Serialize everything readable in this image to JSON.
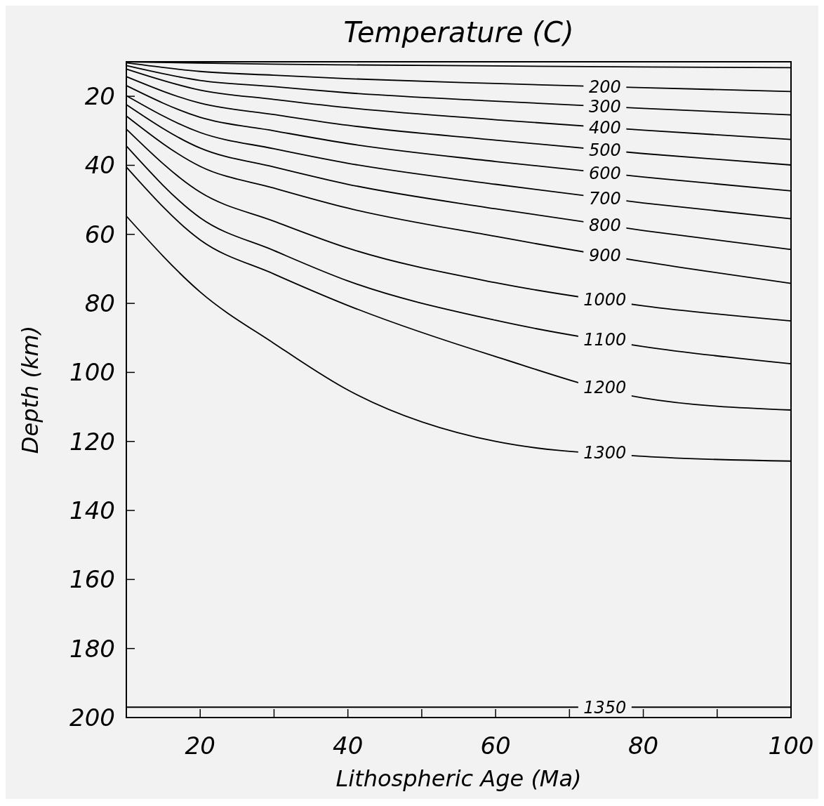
{
  "chart_data": {
    "type": "line",
    "title": "Temperature (C)",
    "xlabel": "Lithospheric Age (Ma)",
    "ylabel": "Depth (km)",
    "x": [
      10,
      20,
      30,
      40,
      60,
      80,
      100
    ],
    "xlim": [
      10,
      100
    ],
    "xticks": [
      20,
      {
        "value": 30,
        "label": null
      },
      40,
      {
        "value": 50,
        "label": null
      },
      60,
      {
        "value": 70,
        "label": null
      },
      80,
      {
        "value": 90,
        "label": null
      },
      100
    ],
    "ylim": [
      200,
      10
    ],
    "yticks": [
      20,
      40,
      60,
      80,
      100,
      120,
      140,
      160,
      180,
      200
    ],
    "grid": false,
    "line_style": "solid",
    "series": [
      {
        "color": "#000000",
        "values": [
          10,
          10.4,
          10.7,
          10.9,
          11.2,
          11.5,
          11.7
        ]
      },
      {
        "name": "200",
        "color": "#000000",
        "values": [
          10.3,
          12.8,
          13.9,
          14.9,
          16.3,
          17.5,
          18.6
        ]
      },
      {
        "name": "300",
        "color": "#000000",
        "values": [
          11.1,
          15.4,
          17.2,
          19.0,
          21.4,
          23.5,
          25.4
        ]
      },
      {
        "name": "400",
        "color": "#000000",
        "values": [
          12.1,
          18.2,
          20.9,
          23.3,
          26.8,
          29.8,
          32.5
        ]
      },
      {
        "name": "500",
        "color": "#000000",
        "values": [
          14.3,
          22.0,
          25.3,
          28.4,
          32.7,
          36.6,
          39.9
        ]
      },
      {
        "name": "600",
        "color": "#000000",
        "values": [
          16.9,
          26.1,
          30.0,
          33.7,
          38.9,
          43.4,
          47.4
        ]
      },
      {
        "name": "700",
        "color": "#000000",
        "values": [
          19.8,
          30.5,
          35.2,
          39.4,
          45.5,
          50.9,
          55.5
        ]
      },
      {
        "name": "800",
        "color": "#000000",
        "values": [
          22.4,
          35.0,
          40.5,
          45.5,
          52.6,
          58.9,
          64.4
        ]
      },
      {
        "name": "900",
        "color": "#000000",
        "values": [
          25.7,
          40.3,
          46.6,
          52.4,
          60.6,
          67.9,
          74.2
        ]
      },
      {
        "name": "1000",
        "color": "#000000",
        "values": [
          29.5,
          47.8,
          56.2,
          64.0,
          74.0,
          80.7,
          85.1
        ]
      },
      {
        "name": "1100",
        "color": "#000000",
        "values": [
          34.4,
          55.2,
          64.7,
          73.5,
          84.9,
          92.5,
          97.5
        ]
      },
      {
        "name": "1200",
        "color": "#000000",
        "values": [
          40.5,
          61.6,
          71.5,
          80.6,
          95.4,
          107.4,
          110.9
        ]
      },
      {
        "name": "1300",
        "color": "#000000",
        "values": [
          54.7,
          76.7,
          91.6,
          105.1,
          120.0,
          124.3,
          125.7
        ]
      },
      {
        "name": "1350",
        "color": "#000000",
        "values": [
          197,
          197,
          197,
          197,
          197,
          197,
          197
        ]
      }
    ]
  }
}
